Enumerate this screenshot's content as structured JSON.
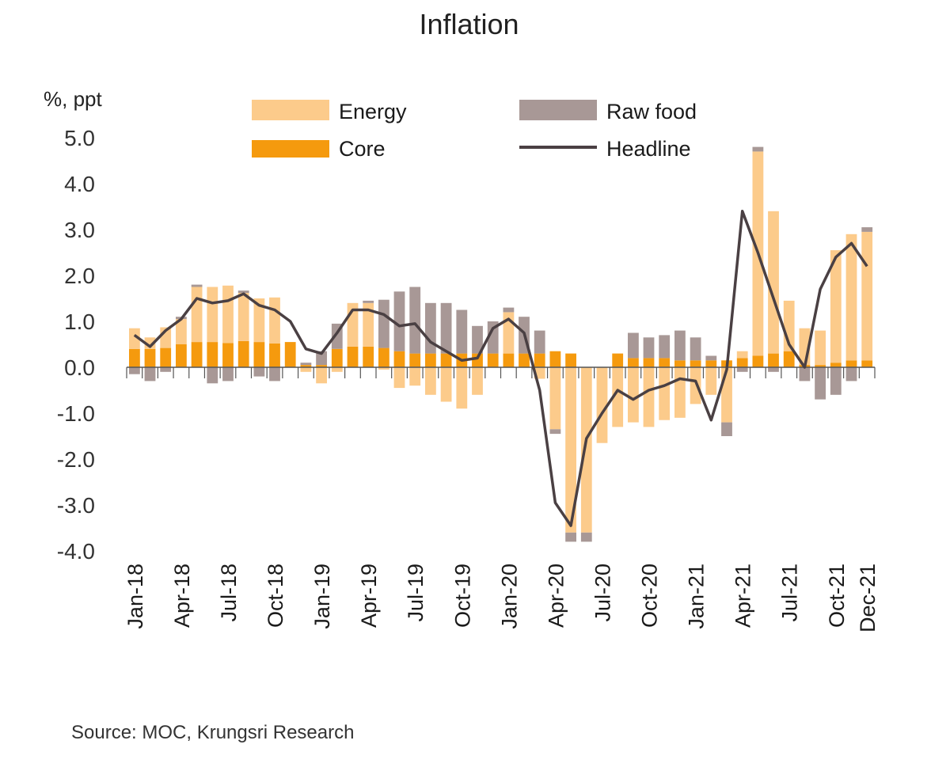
{
  "chart_data": {
    "type": "bar",
    "stacked": true,
    "title": "Inflation",
    "ylabel": "%, ppt",
    "ylim": [
      -4.0,
      5.0
    ],
    "yticks": [
      "5.0",
      "4.0",
      "3.0",
      "2.0",
      "1.0",
      "0.0",
      "-1.0",
      "-2.0",
      "-3.0",
      "-4.0"
    ],
    "ytick_values": [
      5,
      4,
      3,
      2,
      1,
      0,
      -1,
      -2,
      -3,
      -4
    ],
    "months": [
      "Jan-18",
      "Feb-18",
      "Mar-18",
      "Apr-18",
      "May-18",
      "Jun-18",
      "Jul-18",
      "Aug-18",
      "Sep-18",
      "Oct-18",
      "Nov-18",
      "Dec-18",
      "Jan-19",
      "Feb-19",
      "Mar-19",
      "Apr-19",
      "May-19",
      "Jun-19",
      "Jul-19",
      "Aug-19",
      "Sep-19",
      "Oct-19",
      "Nov-19",
      "Dec-19",
      "Jan-20",
      "Feb-20",
      "Mar-20",
      "Apr-20",
      "May-20",
      "Jun-20",
      "Jul-20",
      "Aug-20",
      "Sep-20",
      "Oct-20",
      "Nov-20",
      "Dec-20",
      "Jan-21",
      "Feb-21",
      "Mar-21",
      "Apr-21",
      "May-21",
      "Jun-21",
      "Jul-21",
      "Aug-21",
      "Sep-21",
      "Oct-21",
      "Nov-21",
      "Dec-21"
    ],
    "xtick_labels": [
      "Jan-18",
      "Apr-18",
      "Jul-18",
      "Oct-18",
      "Jan-19",
      "Apr-19",
      "Jul-19",
      "Oct-19",
      "Jan-20",
      "Apr-20",
      "Jul-20",
      "Oct-20",
      "Jan-21",
      "Apr-21",
      "Jul-21",
      "Oct-21",
      "Dec-21"
    ],
    "series": [
      {
        "name": "Core",
        "color": "#f59a0e",
        "values": [
          0.4,
          0.4,
          0.42,
          0.5,
          0.55,
          0.55,
          0.53,
          0.57,
          0.55,
          0.52,
          0.55,
          0.05,
          0.05,
          0.4,
          0.45,
          0.45,
          0.42,
          0.35,
          0.3,
          0.3,
          0.3,
          0.3,
          0.3,
          0.3,
          0.3,
          0.3,
          0.3,
          0.35,
          0.3,
          0.0,
          0.0,
          0.3,
          0.2,
          0.2,
          0.2,
          0.15,
          0.15,
          0.15,
          0.15,
          0.2,
          0.25,
          0.3,
          0.35,
          0.05,
          0.05,
          0.1,
          0.15,
          0.15
        ]
      },
      {
        "name": "Energy",
        "color": "#fccb8b",
        "values": [
          0.45,
          0.25,
          0.45,
          0.55,
          1.2,
          1.2,
          1.25,
          1.05,
          0.95,
          1.0,
          0.0,
          -0.1,
          -0.35,
          -0.1,
          0.95,
          0.95,
          -0.05,
          -0.45,
          -0.4,
          -0.6,
          -0.75,
          -0.9,
          -0.6,
          0.0,
          0.9,
          0.0,
          -0.25,
          -1.35,
          -3.6,
          -3.6,
          -1.65,
          -1.3,
          -1.2,
          -1.3,
          -1.15,
          -1.1,
          -0.8,
          -0.6,
          -1.2,
          0.15,
          4.45,
          3.1,
          1.1,
          0.8,
          0.75,
          2.45,
          2.75,
          2.8
        ]
      },
      {
        "name": "Raw food",
        "color": "#a89896",
        "values": [
          -0.15,
          -0.3,
          -0.1,
          0.05,
          0.05,
          -0.35,
          -0.3,
          0.05,
          -0.2,
          -0.3,
          0.0,
          0.05,
          0.3,
          0.55,
          0.0,
          0.05,
          1.05,
          1.3,
          1.45,
          1.1,
          1.1,
          0.95,
          0.6,
          0.7,
          0.1,
          0.8,
          0.5,
          -0.1,
          -0.2,
          -0.2,
          0.0,
          0.0,
          0.55,
          0.45,
          0.5,
          0.65,
          0.5,
          0.1,
          -0.3,
          -0.1,
          0.1,
          -0.1,
          0.0,
          -0.3,
          -0.7,
          -0.6,
          -0.3,
          0.1
        ]
      }
    ],
    "headline": {
      "name": "Headline",
      "color": "#4a4043",
      "values": [
        0.7,
        0.45,
        0.8,
        1.05,
        1.5,
        1.4,
        1.45,
        1.6,
        1.35,
        1.25,
        1.0,
        0.4,
        0.3,
        0.75,
        1.25,
        1.25,
        1.15,
        0.9,
        0.95,
        0.55,
        0.35,
        0.15,
        0.2,
        0.85,
        1.05,
        0.75,
        -0.5,
        -2.95,
        -3.45,
        -1.55,
        -1.0,
        -0.5,
        -0.7,
        -0.5,
        -0.4,
        -0.25,
        -0.3,
        -1.15,
        -0.05,
        3.4,
        2.5,
        1.5,
        0.5,
        0.0,
        1.7,
        2.4,
        2.7,
        2.2
      ]
    },
    "legend": {
      "placement": "top",
      "items": [
        {
          "label": "Energy",
          "kind": "bar",
          "color": "#fccb8b"
        },
        {
          "label": "Raw food",
          "kind": "bar",
          "color": "#a89896"
        },
        {
          "label": "Core",
          "kind": "bar",
          "color": "#f59a0e"
        },
        {
          "label": "Headline",
          "kind": "line",
          "color": "#4a4043"
        }
      ]
    },
    "source": "Source:  MOC, Krungsri Research"
  }
}
